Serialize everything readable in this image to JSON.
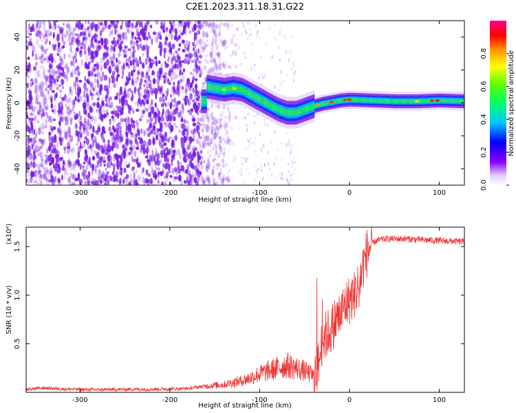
{
  "title": "C2E1.2023.311.18.31.G22",
  "colors": {
    "snr_line": "#ee3333",
    "noise": "#7a1fe6",
    "frame": "#000000"
  },
  "chart_data": [
    {
      "type": "heatmap",
      "xlabel": "Height of straight line (km)",
      "ylabel": "Frequency (Hz)",
      "xlim": [
        -360,
        128
      ],
      "ylim": [
        -50,
        50
      ],
      "x_ticks": [
        -300,
        -200,
        -100,
        0,
        100
      ],
      "y_ticks": [
        -40,
        -20,
        0,
        20,
        40
      ],
      "x_tick_labels": [
        "-300",
        "-200",
        "-100",
        "0",
        "100"
      ],
      "y_tick_labels": [
        "-40",
        "-20",
        "0",
        "20",
        "40"
      ],
      "colorbar": {
        "label": "Normalized spectral amplitude",
        "range": [
          0,
          1
        ],
        "ticks": [
          0.0,
          0.2,
          0.4,
          0.6,
          0.8
        ],
        "tick_labels": [
          "0.0",
          "0.2",
          "0.4",
          "0.6",
          "0.8"
        ]
      },
      "signal_track": {
        "x": [
          -160,
          -150,
          -140,
          -130,
          -120,
          -110,
          -100,
          -90,
          -80,
          -70,
          -60,
          -50,
          -40,
          -30,
          -20,
          -10,
          0,
          25,
          50,
          75,
          100,
          128
        ],
        "y": [
          10,
          9,
          8,
          9,
          8,
          5,
          2,
          -1,
          -4,
          -6,
          -6,
          -4,
          -2,
          -0.5,
          0.5,
          1.5,
          2,
          1.5,
          1,
          1,
          1.5,
          1
        ]
      }
    },
    {
      "type": "line",
      "xlabel": "Height of straight line (km)",
      "ylabel": "SNR (10 * v/v)",
      "scale_label": "(x10⁴)",
      "xlim": [
        -360,
        128
      ],
      "ylim": [
        0,
        17000
      ],
      "x_ticks": [
        -300,
        -200,
        -100,
        0,
        100
      ],
      "y_ticks": [
        5000,
        10000,
        15000
      ],
      "x_tick_labels": [
        "-300",
        "-200",
        "-100",
        "0",
        "100"
      ],
      "y_tick_labels": [
        "0.5",
        "1.0",
        "1.5"
      ],
      "series": [
        {
          "x": [
            -360,
            -340,
            -320,
            -300,
            -280,
            -260,
            -240,
            -220,
            -200,
            -180,
            -160,
            -140,
            -120,
            -110,
            -100,
            -90,
            -80,
            -70,
            -60,
            -50,
            -40,
            -35,
            -30,
            -25,
            -20,
            -15,
            -10,
            -5,
            0,
            5,
            10,
            15,
            20,
            25,
            30,
            40,
            60,
            80,
            100,
            128
          ],
          "y": [
            300,
            450,
            350,
            300,
            280,
            300,
            320,
            320,
            350,
            400,
            650,
            800,
            1200,
            1500,
            1900,
            2200,
            2500,
            2800,
            2500,
            2200,
            1700,
            2500,
            5500,
            6000,
            6500,
            7500,
            8000,
            9000,
            9500,
            10000,
            11000,
            13000,
            14500,
            15300,
            15600,
            15800,
            15800,
            15700,
            15600,
            15500
          ]
        }
      ]
    }
  ]
}
